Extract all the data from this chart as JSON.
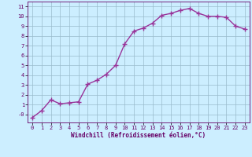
{
  "x": [
    0,
    1,
    2,
    3,
    4,
    5,
    6,
    7,
    8,
    9,
    10,
    11,
    12,
    13,
    14,
    15,
    16,
    17,
    18,
    19,
    20,
    21,
    22,
    23
  ],
  "y": [
    -0.3,
    0.4,
    1.5,
    1.1,
    1.2,
    1.3,
    3.1,
    3.5,
    4.1,
    5.0,
    7.2,
    8.5,
    8.8,
    9.3,
    10.1,
    10.3,
    10.6,
    10.8,
    10.3,
    10.0,
    10.0,
    9.9,
    9.0,
    8.7
  ],
  "line_color": "#993399",
  "marker": "+",
  "marker_size": 4,
  "marker_linewidth": 1.0,
  "bg_color": "#cceeff",
  "grid_color": "#99bbcc",
  "xlabel": "Windchill (Refroidissement éolien,°C)",
  "xlim": [
    -0.5,
    23.5
  ],
  "ylim": [
    -0.8,
    11.5
  ],
  "yticks": [
    0,
    1,
    2,
    3,
    4,
    5,
    6,
    7,
    8,
    9,
    10,
    11
  ],
  "ytick_labels": [
    "-0",
    "1",
    "2",
    "3",
    "4",
    "5",
    "6",
    "7",
    "8",
    "9",
    "10",
    "11"
  ],
  "xticks": [
    0,
    1,
    2,
    3,
    4,
    5,
    6,
    7,
    8,
    9,
    10,
    11,
    12,
    13,
    14,
    15,
    16,
    17,
    18,
    19,
    20,
    21,
    22,
    23
  ],
  "label_color": "#660066",
  "tick_color": "#660066",
  "linewidth": 1.0,
  "tick_fontsize": 5.0,
  "xlabel_fontsize": 5.5
}
